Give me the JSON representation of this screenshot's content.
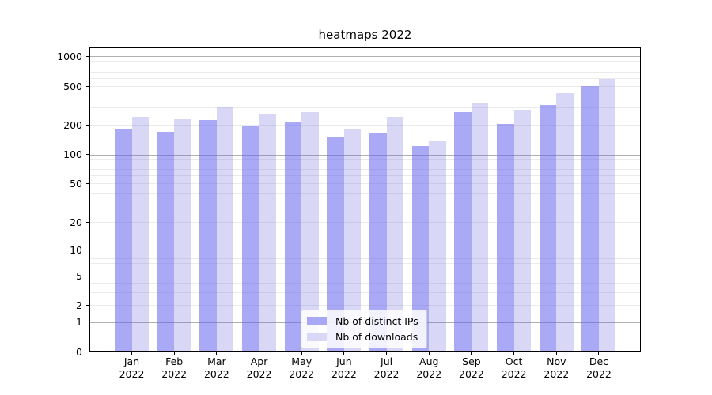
{
  "chart_data": {
    "type": "bar",
    "title": "heatmaps 2022",
    "categories": [
      {
        "month": "Jan",
        "year": "2022"
      },
      {
        "month": "Feb",
        "year": "2022"
      },
      {
        "month": "Mar",
        "year": "2022"
      },
      {
        "month": "Apr",
        "year": "2022"
      },
      {
        "month": "May",
        "year": "2022"
      },
      {
        "month": "Jun",
        "year": "2022"
      },
      {
        "month": "Jul",
        "year": "2022"
      },
      {
        "month": "Aug",
        "year": "2022"
      },
      {
        "month": "Sep",
        "year": "2022"
      },
      {
        "month": "Oct",
        "year": "2022"
      },
      {
        "month": "Nov",
        "year": "2022"
      },
      {
        "month": "Dec",
        "year": "2022"
      }
    ],
    "series": [
      {
        "name": "Nb of distinct IPs",
        "key": "ips",
        "values": [
          180,
          167,
          218,
          193,
          209,
          146,
          163,
          119,
          266,
          199,
          312,
          490
        ]
      },
      {
        "name": "Nb of downloads",
        "key": "dl",
        "values": [
          235,
          224,
          300,
          256,
          265,
          180,
          237,
          133,
          323,
          278,
          413,
          580
        ]
      }
    ],
    "yscale": "symlog",
    "ylim": [
      0,
      1000
    ],
    "yticks": [
      0,
      1,
      2,
      5,
      10,
      20,
      50,
      100,
      200,
      500,
      1000
    ],
    "minor_gridlines": [
      2,
      3,
      4,
      5,
      6,
      7,
      8,
      9,
      20,
      30,
      40,
      50,
      60,
      70,
      80,
      90,
      200,
      300,
      400,
      500,
      600,
      700,
      800,
      900
    ],
    "major_gridlines": [
      1,
      10,
      100,
      1000
    ],
    "grid": true,
    "legend_position": "lower center",
    "colors": {
      "ips_bar": "#a8a8f6",
      "downloads_bar": "#d8d8f6",
      "grid_major": "#b0b0b0",
      "grid_minor": "#ebebeb",
      "axis": "#000000"
    }
  }
}
